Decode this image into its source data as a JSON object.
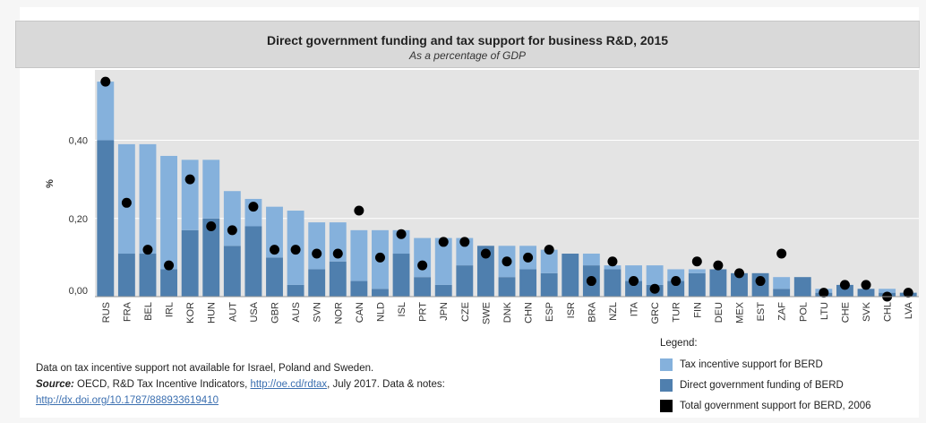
{
  "chart_data": {
    "type": "bar",
    "title": "Direct government funding and tax support for business R&D, 2015",
    "subtitle": "As a percentage of GDP",
    "ylabel": "%",
    "ylim": [
      0,
      0.58
    ],
    "yticks": [
      {
        "value": 0,
        "label": "0,00"
      },
      {
        "value": 0.2,
        "label": "0,20"
      },
      {
        "value": 0.4,
        "label": "0,40"
      }
    ],
    "grid": true,
    "stacked": true,
    "categories": [
      "RUS",
      "FRA",
      "BEL",
      "IRL",
      "KOR",
      "HUN",
      "AUT",
      "USA",
      "GBR",
      "AUS",
      "SVN",
      "NOR",
      "CAN",
      "NLD",
      "ISL",
      "PRT",
      "JPN",
      "CZE",
      "SWE",
      "DNK",
      "CHN",
      "ESP",
      "ISR",
      "BRA",
      "NZL",
      "ITA",
      "GRC",
      "TUR",
      "FIN",
      "DEU",
      "MEX",
      "EST",
      "ZAF",
      "POL",
      "LTU",
      "CHE",
      "SVK",
      "CHL",
      "LVA"
    ],
    "series": [
      {
        "name": "Direct government funding of BERD",
        "type": "bar",
        "color": "#4f7fae",
        "values": [
          0.4,
          0.11,
          0.11,
          0.07,
          0.17,
          0.2,
          0.13,
          0.18,
          0.1,
          0.03,
          0.07,
          0.09,
          0.04,
          0.02,
          0.11,
          0.05,
          0.03,
          0.08,
          0.13,
          0.05,
          0.07,
          0.06,
          0.11,
          0.08,
          0.07,
          0.04,
          0.03,
          0.04,
          0.06,
          0.07,
          0.06,
          0.06,
          0.02,
          0.05,
          0.01,
          0.03,
          0.02,
          0.01,
          0.01
        ]
      },
      {
        "name": "Tax incentive support for BERD",
        "type": "bar",
        "color": "#85b1dc",
        "values": [
          0.15,
          0.28,
          0.28,
          0.29,
          0.18,
          0.15,
          0.14,
          0.07,
          0.13,
          0.19,
          0.12,
          0.1,
          0.13,
          0.15,
          0.06,
          0.1,
          0.12,
          0.07,
          0.0,
          0.08,
          0.06,
          0.06,
          0.0,
          0.03,
          0.01,
          0.04,
          0.05,
          0.03,
          0.01,
          0.0,
          0.0,
          0.0,
          0.03,
          0.0,
          0.01,
          0.0,
          0.0,
          0.01,
          0.0
        ]
      },
      {
        "name": "Total government support for BERD, 2006",
        "type": "scatter",
        "color": "#000000",
        "values": [
          0.55,
          0.24,
          0.12,
          0.08,
          0.3,
          0.18,
          0.17,
          0.23,
          0.12,
          0.12,
          0.11,
          0.11,
          0.22,
          0.1,
          0.16,
          0.08,
          0.14,
          0.14,
          0.11,
          0.09,
          0.1,
          0.12,
          null,
          0.04,
          0.09,
          0.04,
          0.02,
          0.04,
          0.09,
          0.08,
          0.06,
          0.04,
          0.11,
          null,
          0.01,
          0.03,
          0.03,
          0.0,
          0.01
        ]
      }
    ]
  },
  "footnote": {
    "line1": "Data on tax incentive support not available for Israel, Poland and Sweden.",
    "source_label": "Source:",
    "source_text": " OECD, R&D Tax Incentive Indicators, ",
    "link1": "http://oe.cd/rdtax",
    "source_mid": ", July 2017. Data & notes: ",
    "link2": "http://dx.doi.org/10.1787/888933619410"
  },
  "legend": {
    "title": "Legend:",
    "items": [
      {
        "label": "Tax incentive support for BERD",
        "color": "#85b1dc"
      },
      {
        "label": "Direct government funding of BERD",
        "color": "#4f7fae"
      },
      {
        "label": "Total government support for BERD, 2006",
        "color": "#000000"
      }
    ]
  }
}
